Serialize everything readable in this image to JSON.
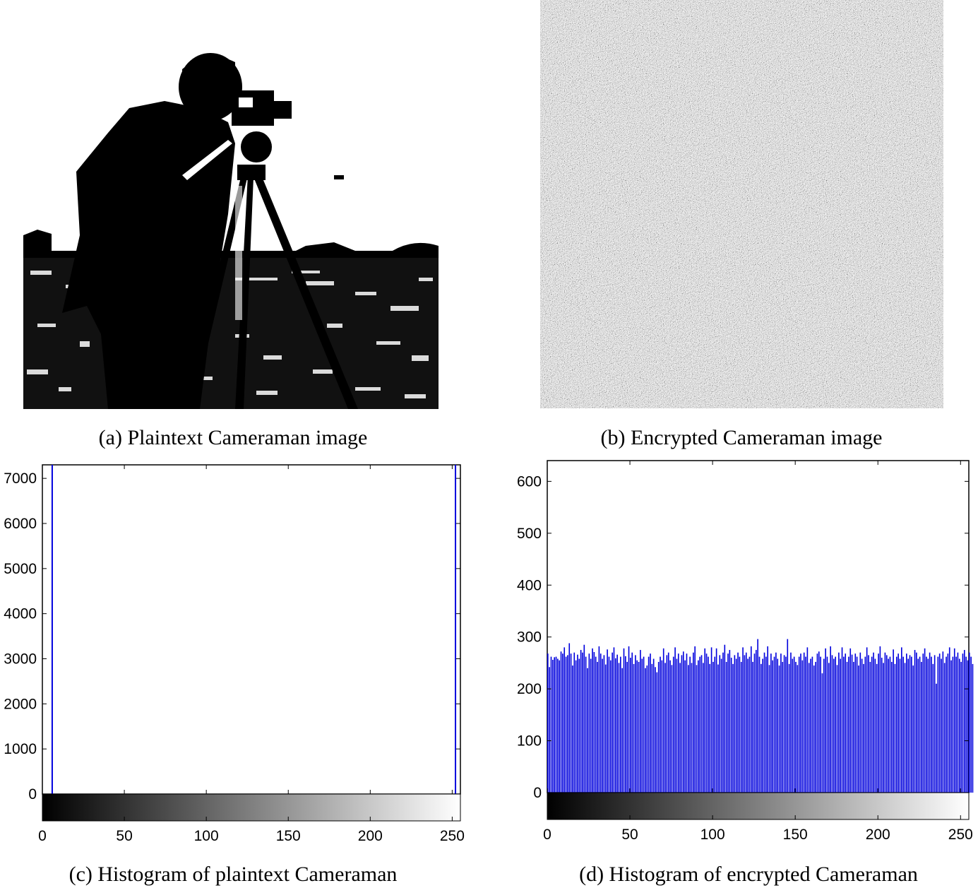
{
  "captions": {
    "a": "(a) Plaintext Cameraman image",
    "b": "(b) Encrypted Cameraman image",
    "c": "(c) Histogram of plaintext Cameraman",
    "d": "(d) Histogram of encrypted Cameraman"
  },
  "images": {
    "plaintext": {
      "description_icon": "cameraman-binary-image"
    },
    "encrypted": {
      "description_icon": "noise-image"
    }
  },
  "colors": {
    "bar": "#0000dd",
    "axis": "#000000"
  },
  "chart_data": [
    {
      "type": "bar",
      "title": "",
      "xlabel": "",
      "ylabel": "",
      "xlim": [
        0,
        255
      ],
      "ylim": [
        0,
        7300
      ],
      "xticks": [
        0,
        50,
        100,
        150,
        200,
        250
      ],
      "yticks": [
        0,
        1000,
        2000,
        3000,
        4000,
        5000,
        6000,
        7000
      ],
      "colorbar": "grayscale 0-255 below x-axis",
      "bars": [
        {
          "x": 6,
          "y": 7300
        },
        {
          "x": 252,
          "y": 7300
        }
      ]
    },
    {
      "type": "bar",
      "title": "",
      "xlabel": "",
      "ylabel": "",
      "xlim": [
        0,
        255
      ],
      "ylim": [
        0,
        640
      ],
      "xticks": [
        0,
        50,
        100,
        150,
        200,
        250
      ],
      "yticks": [
        0,
        100,
        200,
        300,
        400,
        500,
        600
      ],
      "colorbar": "grayscale 0-255 below x-axis",
      "values": [
        268,
        242,
        262,
        256,
        261,
        262,
        258,
        255,
        272,
        268,
        280,
        262,
        265,
        288,
        268,
        245,
        270,
        255,
        266,
        258,
        275,
        270,
        285,
        262,
        240,
        268,
        258,
        278,
        271,
        262,
        252,
        282,
        268,
        258,
        265,
        247,
        276,
        262,
        255,
        270,
        280,
        259,
        266,
        250,
        262,
        240,
        278,
        263,
        252,
        282,
        260,
        270,
        248,
        265,
        255,
        252,
        275,
        258,
        262,
        240,
        245,
        262,
        268,
        248,
        258,
        242,
        232,
        252,
        262,
        255,
        278,
        250,
        265,
        270,
        255,
        246,
        262,
        280,
        258,
        268,
        250,
        265,
        272,
        255,
        268,
        246,
        262,
        250,
        270,
        282,
        246,
        255,
        262,
        265,
        250,
        278,
        268,
        262,
        248,
        280,
        252,
        262,
        278,
        247,
        265,
        258,
        270,
        285,
        252,
        268,
        275,
        260,
        248,
        265,
        258,
        270,
        262,
        252,
        280,
        265,
        270,
        258,
        262,
        282,
        252,
        268,
        275,
        296,
        262,
        248,
        258,
        270,
        262,
        282,
        246,
        268,
        255,
        262,
        270,
        258,
        245,
        268,
        252,
        265,
        262,
        296,
        248,
        270,
        258,
        262,
        252,
        246,
        262,
        268,
        255,
        270,
        262,
        280,
        250,
        258,
        262,
        245,
        252,
        268,
        272,
        262,
        230,
        258,
        278,
        262,
        250,
        282,
        265,
        258,
        262,
        246,
        270,
        258,
        280,
        262,
        268,
        252,
        262,
        278,
        266,
        252,
        268,
        262,
        245,
        270,
        258,
        248,
        262,
        280,
        265,
        252,
        262,
        270,
        258,
        248,
        268,
        282,
        260,
        250,
        270,
        265,
        258,
        262,
        252,
        276,
        248,
        262,
        268,
        258,
        280,
        262,
        250,
        268,
        258,
        265,
        262,
        245,
        275,
        270,
        258,
        262,
        252,
        268,
        278,
        262,
        258,
        270,
        262,
        248,
        265,
        210,
        262,
        268,
        258,
        272,
        250,
        262,
        268,
        280,
        255,
        262,
        278,
        262,
        270,
        258,
        252,
        268,
        275,
        262,
        255,
        270,
        262,
        248
      ]
    }
  ]
}
